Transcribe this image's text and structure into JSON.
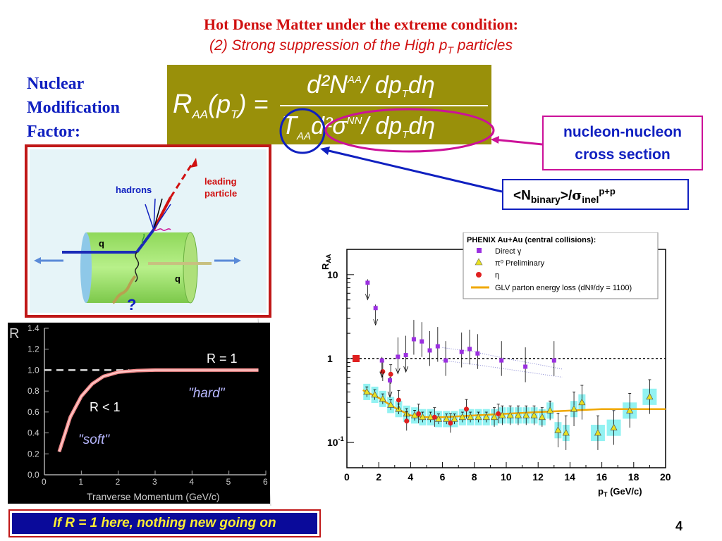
{
  "slide": {
    "title_line1": "Hot Dense Matter under the extreme condition:",
    "title_line2_prefix": "(2) Strong suppression of the High p",
    "title_line2_sub": "T",
    "title_line2_suffix": " particles",
    "side_label_lines": [
      "Nuclear",
      "Modification",
      "Factor:"
    ],
    "page_number": "4"
  },
  "formula": {
    "lhs": "R",
    "lhs_sub": "AA",
    "lhs_arg": "(p",
    "lhs_arg_sub": "T",
    "lhs_arg_close": ") =",
    "numerator": "d²N",
    "numerator_sup": "AA",
    "numerator_rest": "/ dp",
    "numerator_rest_sub": "T",
    "numerator_end": "dη",
    "denominator": "T",
    "denominator_sub": "AA",
    "denominator_mid": "d²σ",
    "denominator_sup": "NN",
    "denominator_rest": "/ dp",
    "denominator_rest_sub": "T",
    "denominator_end": "dη",
    "colors": {
      "box": "#99900a",
      "circle_taa": "#1020c0",
      "ellipse_sigma": "#cc1199"
    }
  },
  "callouts": {
    "nn_cross_section": [
      "nucleon-nucleon",
      "cross section"
    ],
    "nbinary": {
      "main": "<N",
      "sub": "binary",
      "mid": ">/",
      "sigma": "σ",
      "sub2": "inel",
      "sup": "p+p"
    }
  },
  "cartoon": {
    "labels": {
      "hadrons": "hadrons",
      "leading_1": "leading",
      "leading_2": "particle",
      "q_upper": "q",
      "q_lower": "q",
      "question": "?"
    },
    "colors": {
      "frame": "#c01818",
      "cylinder": "#9be36a",
      "hadrons_text": "#1020c0",
      "leading_text": "#d01010"
    }
  },
  "r_plot": {
    "y_axis_letter": "R",
    "y_ticks": [
      "1.4",
      "1.2",
      "1.0",
      "0.8",
      "0.6",
      "0.4",
      "0.2",
      "0.0"
    ],
    "x_ticks": [
      "0",
      "1",
      "2",
      "3",
      "4",
      "5",
      "6"
    ],
    "x_label": "Tranverse Momentum (GeV/c)",
    "label_r_eq_1": "R = 1",
    "label_r_lt_1": "R < 1",
    "label_hard": "\"hard\"",
    "label_soft": "\"soft\"",
    "chart_data": {
      "type": "line",
      "xlabel": "Tranverse Momentum (GeV/c)",
      "ylabel": "R",
      "xlim": [
        0,
        6
      ],
      "ylim": [
        0,
        1.4
      ],
      "grid": false,
      "series": [
        {
          "name": "",
          "x": [
            0.4,
            0.7,
            1.0,
            1.3,
            1.6,
            2.0,
            2.5,
            3.0,
            4.0,
            5.0,
            5.8
          ],
          "y": [
            0.22,
            0.55,
            0.75,
            0.87,
            0.94,
            0.98,
            0.995,
            1.0,
            1.0,
            1.0,
            1.0
          ]
        }
      ],
      "reference_line": {
        "y": 1.0,
        "style": "dashed"
      }
    }
  },
  "raa_plot": {
    "y_axis_label": "R",
    "y_axis_label_sub": "AA",
    "y_ticks": [
      "10",
      "1",
      "10"
    ],
    "y_tick_minus1_sup": "-1",
    "x_ticks": [
      "0",
      "2",
      "4",
      "6",
      "8",
      "10",
      "12",
      "14",
      "16",
      "18",
      "20"
    ],
    "x_label_prefix": "p",
    "x_label_sub": "T",
    "x_label_suffix": " (GeV/c)",
    "legend_title": "PHENIX Au+Au (central collisions):",
    "legend_entries": [
      {
        "marker": "square",
        "color": "#9b30e0",
        "label": "Direct γ"
      },
      {
        "marker": "triangle",
        "color": "#e8e020",
        "label": "π⁰ Preliminary"
      },
      {
        "marker": "circle",
        "color": "#e02020",
        "label": "η"
      },
      {
        "marker": "line",
        "color": "#f0a800",
        "label": "GLV parton energy loss (dNᵍ/dy = 1100)"
      }
    ],
    "chart_data": {
      "type": "scatter",
      "xlabel": "p_T (GeV/c)",
      "ylabel": "R_AA",
      "xlim": [
        0,
        20
      ],
      "ylim": [
        0.05,
        20
      ],
      "y_scale": "log",
      "legend_position": "top-right",
      "series": [
        {
          "name": "Direct γ",
          "x": [
            1.3,
            1.8,
            2.2,
            2.7,
            3.2,
            3.7,
            4.2,
            4.7,
            5.2,
            5.7,
            6.2,
            7.2,
            7.7,
            8.2,
            9.7,
            11.2,
            13.0
          ],
          "y": [
            8.0,
            4.0,
            0.95,
            0.55,
            1.05,
            1.1,
            1.7,
            1.6,
            1.25,
            1.4,
            0.95,
            1.2,
            1.3,
            1.15,
            0.95,
            0.8,
            0.95
          ]
        },
        {
          "name": "π⁰ Preliminary",
          "x": [
            1.25,
            1.75,
            2.25,
            2.75,
            3.25,
            3.75,
            4.25,
            4.75,
            5.25,
            5.75,
            6.25,
            6.75,
            7.25,
            7.75,
            8.25,
            8.75,
            9.25,
            9.75,
            10.25,
            10.75,
            11.25,
            11.75,
            12.25,
            12.75,
            13.25,
            13.75,
            14.25,
            14.75,
            15.75,
            16.75,
            17.75,
            19.0
          ],
          "y": [
            0.4,
            0.37,
            0.33,
            0.28,
            0.25,
            0.22,
            0.21,
            0.2,
            0.2,
            0.19,
            0.19,
            0.19,
            0.2,
            0.2,
            0.2,
            0.2,
            0.2,
            0.21,
            0.21,
            0.21,
            0.21,
            0.21,
            0.2,
            0.24,
            0.14,
            0.13,
            0.25,
            0.3,
            0.13,
            0.15,
            0.24,
            0.35
          ]
        },
        {
          "name": "η",
          "x": [
            2.25,
            2.75,
            3.25,
            3.75,
            4.5,
            5.5,
            6.5,
            7.5,
            9.5
          ],
          "y": [
            0.7,
            0.65,
            0.32,
            0.18,
            0.22,
            0.2,
            0.17,
            0.25,
            0.22
          ]
        },
        {
          "name": "GLV parton energy loss (dNᵍ/dy = 1100)",
          "x": [
            1.0,
            2.0,
            3.0,
            4.0,
            5.0,
            6.0,
            8.0,
            10.0,
            12.0,
            14.0,
            16.0,
            18.0,
            20.0
          ],
          "y": [
            0.42,
            0.34,
            0.26,
            0.21,
            0.2,
            0.2,
            0.21,
            0.22,
            0.23,
            0.24,
            0.25,
            0.25,
            0.25
          ]
        }
      ],
      "reference_line": {
        "y": 1.0,
        "style": "dotted"
      }
    }
  }
}
